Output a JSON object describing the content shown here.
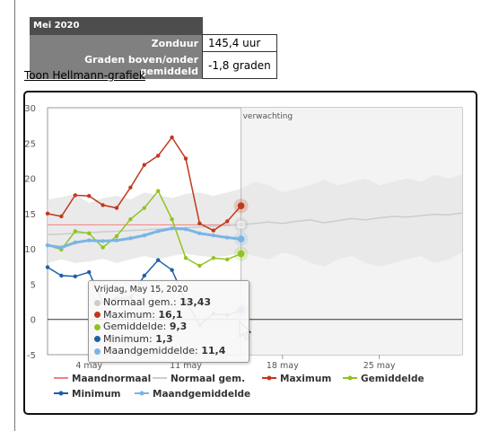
{
  "summary": {
    "month": "Mei 2020",
    "rows": [
      {
        "label": "Zonduur",
        "value": "145,4 uur"
      },
      {
        "label": "Graden boven/onder gemiddeld",
        "value": "-1,8 graden"
      }
    ]
  },
  "link": {
    "label": "Toon Hellmann-grafiek"
  },
  "colors": {
    "maandnormaal": "#f08080",
    "normaal_gem": "#cccccc",
    "maximum": "#c0391b",
    "gemiddelde": "#8fc31f",
    "minimum": "#1f5fa8",
    "maandgemiddelde": "#7ab4e6",
    "band": "#e6e6e6"
  },
  "chart_data": {
    "type": "line",
    "annotation": "verwachting",
    "ylim": [
      -5,
      30
    ],
    "yticks": [
      -5,
      0,
      5,
      10,
      15,
      20,
      25,
      30
    ],
    "x_ticks": [
      {
        "label": "4 may",
        "day": 4
      },
      {
        "label": "11 may",
        "day": 11
      },
      {
        "label": "18 may",
        "day": 18
      },
      {
        "label": "25 may",
        "day": 25
      }
    ],
    "x_range": [
      1,
      31
    ],
    "forecast_start_day": 15,
    "maandnormaal": 13.4,
    "normaal_gem": {
      "days": [
        1,
        2,
        3,
        4,
        5,
        6,
        7,
        8,
        9,
        10,
        11,
        12,
        13,
        14,
        15,
        16,
        17,
        18,
        19,
        20,
        21,
        22,
        23,
        24,
        25,
        26,
        27,
        28,
        29,
        30,
        31
      ],
      "values": [
        12.0,
        12.1,
        12.2,
        12.3,
        12.4,
        12.5,
        12.6,
        12.7,
        12.8,
        12.9,
        13.0,
        13.1,
        13.2,
        13.3,
        13.43,
        13.6,
        13.8,
        13.6,
        13.9,
        14.1,
        13.7,
        14.0,
        14.3,
        14.1,
        14.4,
        14.6,
        14.5,
        14.7,
        14.9,
        14.8,
        15.1
      ]
    },
    "band_upper": [
      17.0,
      17.3,
      17.8,
      16.5,
      17.2,
      17.5,
      17.0,
      18.0,
      17.6,
      17.2,
      17.8,
      18.0,
      17.5,
      18.0,
      18.5,
      19.5,
      19.0,
      18.0,
      18.5,
      19.0,
      19.8,
      19.0,
      19.5,
      20.0,
      19.0,
      19.5,
      20.0,
      19.5,
      20.5,
      20.0,
      20.5
    ],
    "band_lower": [
      8.0,
      8.5,
      8.0,
      8.2,
      8.6,
      8.0,
      8.5,
      9.0,
      8.5,
      9.0,
      9.3,
      9.0,
      8.8,
      9.0,
      9.5,
      9.0,
      8.5,
      9.5,
      9.0,
      8.0,
      7.5,
      8.5,
      9.0,
      8.0,
      7.5,
      8.0,
      8.5,
      9.0,
      8.0,
      8.5,
      9.5
    ],
    "series": [
      {
        "name": "Maximum",
        "days": [
          1,
          2,
          3,
          4,
          5,
          6,
          7,
          8,
          9,
          10,
          11,
          12,
          13,
          14,
          15
        ],
        "values": [
          15.0,
          14.6,
          17.6,
          17.5,
          16.2,
          15.8,
          18.7,
          21.9,
          23.2,
          25.8,
          22.8,
          13.6,
          12.6,
          13.9,
          16.1
        ]
      },
      {
        "name": "Gemiddelde",
        "days": [
          1,
          2,
          3,
          4,
          5,
          6,
          7,
          8,
          9,
          10,
          11,
          12,
          13,
          14,
          15
        ],
        "values": [
          10.5,
          9.9,
          12.5,
          12.2,
          10.2,
          11.8,
          14.2,
          15.8,
          18.2,
          14.2,
          8.7,
          7.6,
          8.7,
          8.5,
          9.3
        ]
      },
      {
        "name": "Minimum",
        "days": [
          1,
          2,
          3,
          4,
          5,
          6,
          7,
          8,
          9,
          10,
          11,
          12,
          13,
          14,
          15
        ],
        "values": [
          7.4,
          6.2,
          6.1,
          6.7,
          2.4,
          3.0,
          3.1,
          6.2,
          8.4,
          7.0,
          2.6,
          -0.8,
          0.8,
          0.6,
          1.3
        ]
      },
      {
        "name": "Maandgemiddelde",
        "days": [
          1,
          2,
          3,
          4,
          5,
          6,
          7,
          8,
          9,
          10,
          11,
          12,
          13,
          14,
          15
        ],
        "values": [
          10.5,
          10.2,
          10.9,
          11.2,
          11.1,
          11.2,
          11.5,
          11.9,
          12.5,
          12.9,
          12.8,
          12.2,
          11.9,
          11.6,
          11.4
        ]
      }
    ],
    "legend": [
      "Maandnormaal",
      "Normaal gem.",
      "Maximum",
      "Gemiddelde",
      "Minimum",
      "Maandgemiddelde"
    ],
    "tooltip": {
      "title": "Vrijdag, May 15, 2020",
      "rows": [
        {
          "label": "Normaal gem.:",
          "value": "13,43"
        },
        {
          "label": "Maximum:",
          "value": "16,1"
        },
        {
          "label": "Gemiddelde:",
          "value": "9,3"
        },
        {
          "label": "Minimum:",
          "value": "1,3"
        },
        {
          "label": "Maandgemiddelde:",
          "value": "11,4"
        }
      ]
    }
  }
}
